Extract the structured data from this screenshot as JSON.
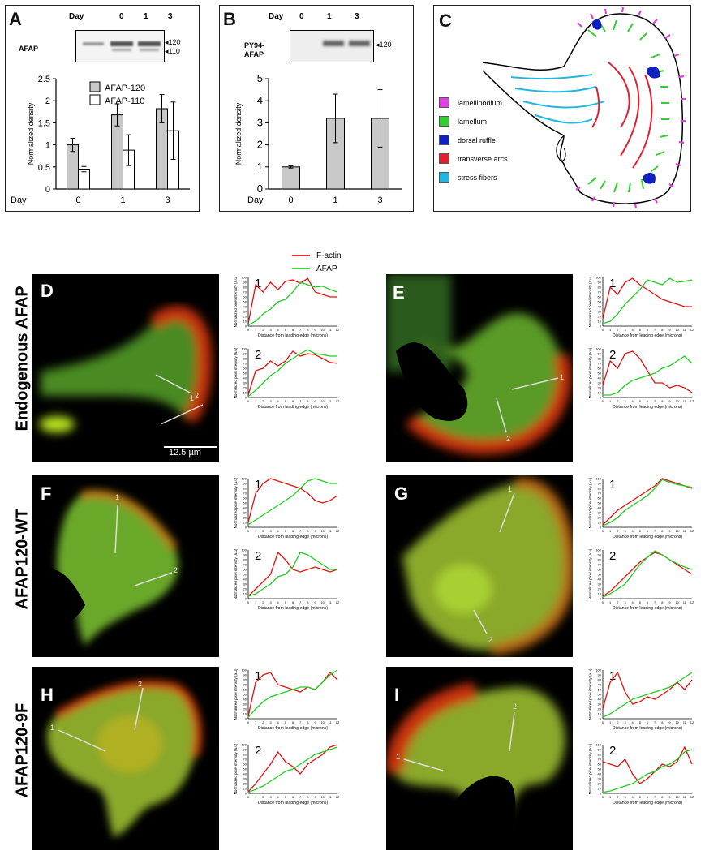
{
  "panelA": {
    "letter": "A",
    "day_label": "Day",
    "days": [
      "0",
      "1",
      "3"
    ],
    "row_label": "AFAP",
    "band_labels": [
      "120",
      "110"
    ],
    "legend": [
      "AFAP-120",
      "AFAP-110"
    ]
  },
  "panelB": {
    "letter": "B",
    "day_label": "Day",
    "days": [
      "0",
      "1",
      "3"
    ],
    "row_label_1": "PY94-",
    "row_label_2": "AFAP",
    "band_label": "120"
  },
  "panelC": {
    "letter": "C",
    "legend": [
      {
        "label": "lamellipodium",
        "color": "#e040e0"
      },
      {
        "label": "lamellum",
        "color": "#30d030"
      },
      {
        "label": "dorsal ruffle",
        "color": "#1020c0"
      },
      {
        "label": "transverse arcs",
        "color": "#e02030"
      },
      {
        "label": "stress fibers",
        "color": "#20b8e0"
      }
    ]
  },
  "legend_main": {
    "factin": "F-actin",
    "afap": "AFAP",
    "factin_color": "#e01010",
    "afap_color": "#20cc20"
  },
  "rows": [
    {
      "label": "Endogenous AFAP",
      "scale_bar": "12.5 µm"
    },
    {
      "label": "AFAP120-WT"
    },
    {
      "label": "AFAP120-9F"
    }
  ],
  "cells": [
    {
      "letter": "D",
      "line1": "1",
      "line2": "2"
    },
    {
      "letter": "E",
      "line1": "1",
      "line2": "2"
    },
    {
      "letter": "F",
      "line1": "1",
      "line2": "2"
    },
    {
      "letter": "G",
      "line1": "1",
      "line2": "2"
    },
    {
      "letter": "H",
      "line1": "1",
      "line2": "2"
    },
    {
      "letter": "I",
      "line1": "1",
      "line2": "2"
    }
  ],
  "line_plot_axes": {
    "ylabel": "Normalized pixel intensity (a.u)",
    "xlabel": "Distance from leading edge (microns)",
    "xticks": [
      "0",
      "1",
      "2",
      "3",
      "4",
      "5",
      "6",
      "7",
      "8",
      "9",
      "10",
      "11",
      "12"
    ],
    "yticks": [
      "0",
      "10",
      "20",
      "30",
      "40",
      "50",
      "60",
      "70",
      "80",
      "90",
      "100"
    ]
  },
  "chart_data": [
    {
      "id": "A",
      "type": "bar",
      "title": "",
      "ylabel": "Normalized density",
      "xlabel": "Day",
      "categories": [
        "0",
        "1",
        "3"
      ],
      "ylim": [
        0,
        2.5
      ],
      "yticks": [
        "0",
        "0.5",
        "1",
        "1.5",
        "2",
        "2.5"
      ],
      "series": [
        {
          "name": "AFAP-120",
          "values": [
            1.0,
            1.68,
            1.82
          ],
          "errors": [
            0.15,
            0.25,
            0.32
          ]
        },
        {
          "name": "AFAP-110",
          "values": [
            0.45,
            0.88,
            1.32
          ],
          "errors": [
            0.06,
            0.35,
            0.65
          ]
        }
      ]
    },
    {
      "id": "B",
      "type": "bar",
      "title": "",
      "ylabel": "Normalized density",
      "xlabel": "Day",
      "categories": [
        "0",
        "1",
        "3"
      ],
      "ylim": [
        0,
        5
      ],
      "yticks": [
        "0",
        "1",
        "2",
        "3",
        "4",
        "5"
      ],
      "series": [
        {
          "name": "PY94-AFAP",
          "values": [
            1.0,
            3.2,
            3.2
          ],
          "errors": [
            0.05,
            1.1,
            1.3
          ]
        }
      ]
    },
    {
      "id": "D1",
      "type": "line",
      "label": "1",
      "series": [
        {
          "name": "F-actin",
          "y": [
            5,
            85,
            70,
            90,
            75,
            92,
            95,
            88,
            98,
            70,
            65,
            60,
            60
          ]
        },
        {
          "name": "AFAP",
          "y": [
            2,
            10,
            25,
            35,
            50,
            55,
            70,
            90,
            85,
            80,
            82,
            75,
            70
          ]
        }
      ]
    },
    {
      "id": "D2",
      "type": "line",
      "label": "2",
      "series": [
        {
          "name": "F-actin",
          "y": [
            5,
            55,
            60,
            75,
            65,
            75,
            95,
            85,
            90,
            88,
            80,
            72,
            70
          ]
        },
        {
          "name": "AFAP",
          "y": [
            2,
            15,
            30,
            45,
            55,
            70,
            80,
            90,
            98,
            90,
            88,
            85,
            85
          ]
        }
      ]
    },
    {
      "id": "E1",
      "type": "line",
      "label": "1",
      "series": [
        {
          "name": "F-actin",
          "y": [
            15,
            80,
            65,
            90,
            98,
            85,
            75,
            65,
            55,
            50,
            45,
            40,
            40
          ]
        },
        {
          "name": "AFAP",
          "y": [
            5,
            10,
            25,
            45,
            60,
            75,
            95,
            90,
            85,
            98,
            90,
            92,
            95
          ]
        }
      ]
    },
    {
      "id": "E2",
      "type": "line",
      "label": "2",
      "series": [
        {
          "name": "F-actin",
          "y": [
            25,
            75,
            60,
            90,
            95,
            80,
            55,
            30,
            30,
            20,
            25,
            20,
            10
          ]
        },
        {
          "name": "AFAP",
          "y": [
            5,
            5,
            10,
            25,
            35,
            40,
            45,
            50,
            60,
            65,
            75,
            85,
            70
          ]
        }
      ]
    },
    {
      "id": "F1",
      "type": "line",
      "label": "1",
      "series": [
        {
          "name": "F-actin",
          "y": [
            10,
            70,
            90,
            100,
            95,
            90,
            85,
            80,
            70,
            55,
            50,
            55,
            65
          ]
        },
        {
          "name": "AFAP",
          "y": [
            5,
            15,
            25,
            35,
            45,
            55,
            65,
            80,
            95,
            100,
            95,
            90,
            90
          ]
        }
      ]
    },
    {
      "id": "F2",
      "type": "line",
      "label": "2",
      "series": [
        {
          "name": "F-actin",
          "y": [
            5,
            20,
            35,
            50,
            95,
            80,
            60,
            55,
            60,
            65,
            60,
            55,
            60
          ]
        },
        {
          "name": "AFAP",
          "y": [
            5,
            10,
            20,
            30,
            45,
            50,
            65,
            95,
            90,
            80,
            70,
            60,
            60
          ]
        }
      ]
    },
    {
      "id": "G1",
      "type": "line",
      "label": "1",
      "series": [
        {
          "name": "F-actin",
          "y": [
            5,
            20,
            35,
            45,
            55,
            65,
            75,
            85,
            100,
            95,
            90,
            85,
            80
          ]
        },
        {
          "name": "AFAP",
          "y": [
            3,
            10,
            20,
            35,
            45,
            55,
            65,
            80,
            98,
            92,
            88,
            85,
            82
          ]
        }
      ]
    },
    {
      "id": "G2",
      "type": "line",
      "label": "2",
      "series": [
        {
          "name": "F-actin",
          "y": [
            5,
            15,
            30,
            45,
            60,
            75,
            85,
            95,
            90,
            80,
            70,
            60,
            50
          ]
        },
        {
          "name": "AFAP",
          "y": [
            3,
            10,
            20,
            30,
            50,
            70,
            85,
            98,
            90,
            80,
            72,
            65,
            60
          ]
        }
      ]
    },
    {
      "id": "H1",
      "type": "line",
      "label": "1",
      "series": [
        {
          "name": "F-actin",
          "y": [
            5,
            75,
            90,
            95,
            70,
            65,
            60,
            55,
            65,
            60,
            75,
            95,
            80
          ]
        },
        {
          "name": "AFAP",
          "y": [
            3,
            20,
            35,
            45,
            50,
            55,
            60,
            65,
            65,
            60,
            75,
            90,
            100
          ]
        }
      ]
    },
    {
      "id": "H2",
      "type": "line",
      "label": "2",
      "series": [
        {
          "name": "F-actin",
          "y": [
            3,
            20,
            40,
            60,
            85,
            65,
            55,
            40,
            60,
            70,
            80,
            95,
            100
          ]
        },
        {
          "name": "AFAP",
          "y": [
            2,
            8,
            15,
            25,
            35,
            45,
            50,
            60,
            70,
            80,
            85,
            90,
            95
          ]
        }
      ]
    },
    {
      "id": "I1",
      "type": "line",
      "label": "1",
      "series": [
        {
          "name": "F-actin",
          "y": [
            20,
            75,
            95,
            55,
            30,
            35,
            45,
            40,
            50,
            60,
            75,
            60,
            80
          ]
        },
        {
          "name": "AFAP",
          "y": [
            3,
            10,
            20,
            30,
            40,
            45,
            50,
            55,
            60,
            65,
            75,
            85,
            95
          ]
        }
      ]
    },
    {
      "id": "I2",
      "type": "line",
      "label": "2",
      "series": [
        {
          "name": "F-actin",
          "y": [
            65,
            60,
            55,
            70,
            40,
            20,
            30,
            45,
            60,
            55,
            65,
            95,
            60
          ]
        },
        {
          "name": "AFAP",
          "y": [
            2,
            5,
            10,
            15,
            20,
            30,
            40,
            45,
            55,
            60,
            70,
            85,
            90
          ]
        }
      ]
    }
  ]
}
